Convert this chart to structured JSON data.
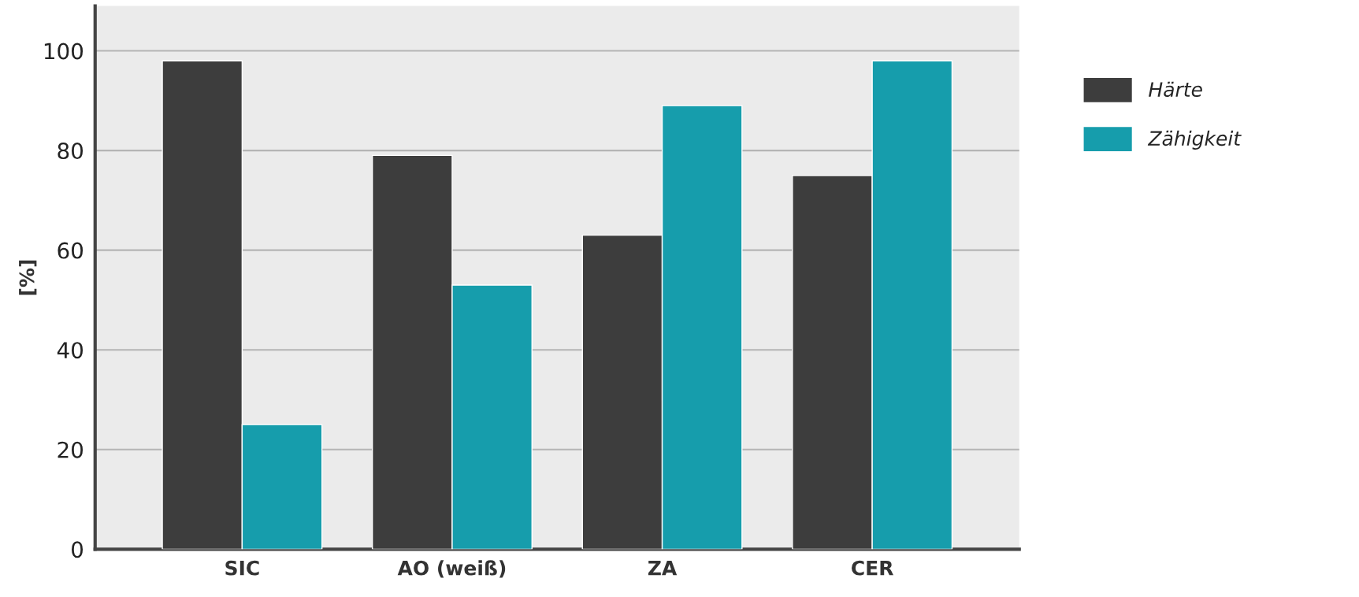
{
  "chart_data": {
    "type": "bar",
    "ylabel": "[%]",
    "categories": [
      "SIC",
      "AO (weiß)",
      "ZA",
      "CER"
    ],
    "series": [
      {
        "name": "Härte",
        "color": "#3d3d3d",
        "values": [
          98,
          79,
          63,
          75
        ]
      },
      {
        "name": "Zähigkeit",
        "color": "#169dac",
        "values": [
          25,
          53,
          89,
          98
        ]
      }
    ],
    "ylim": [
      0,
      109
    ],
    "yticks": [
      0,
      20,
      40,
      60,
      80,
      100
    ],
    "grid": "y",
    "legend": "right"
  }
}
